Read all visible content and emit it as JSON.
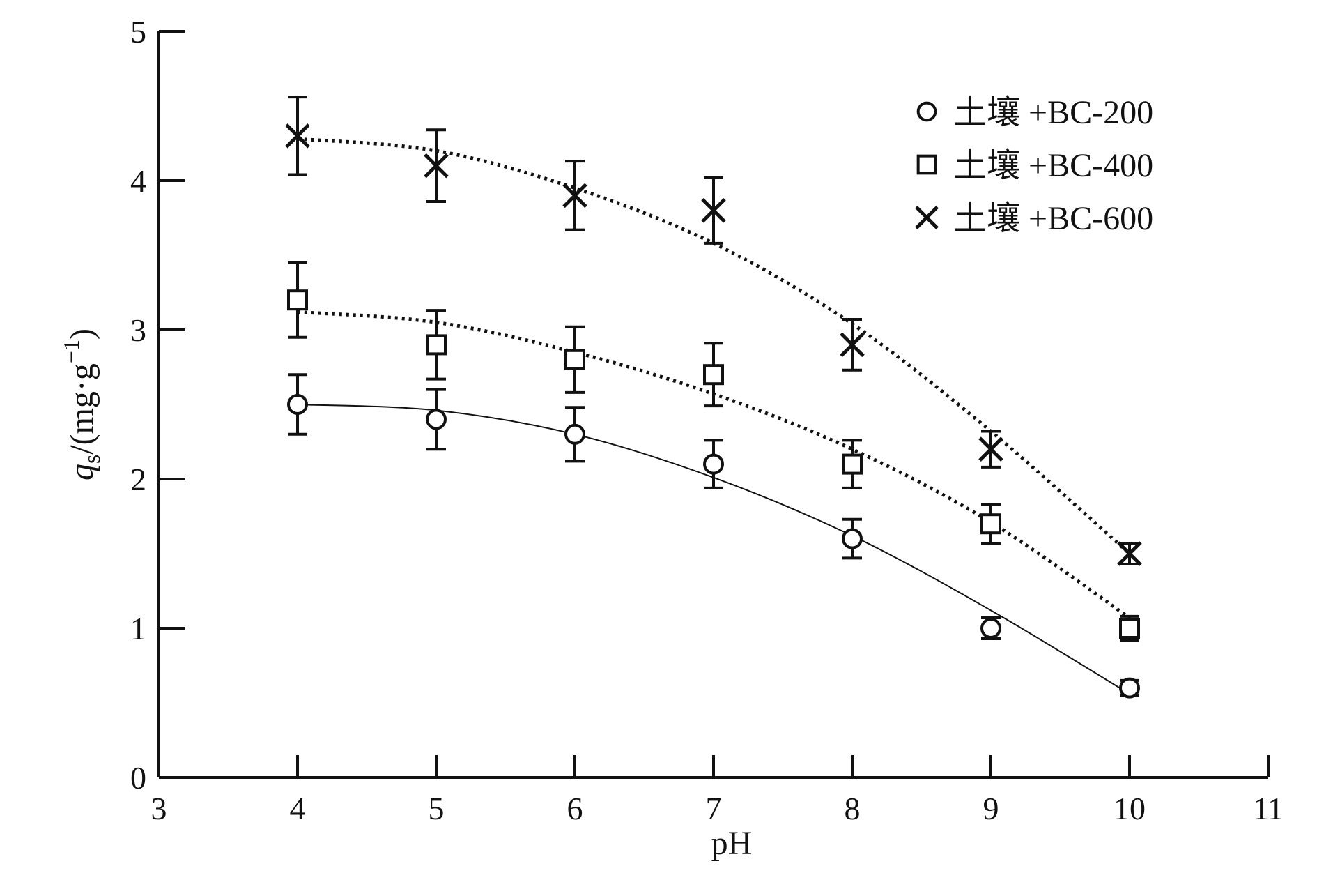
{
  "chart_data": {
    "type": "scatter",
    "title": "",
    "xlabel": "pH",
    "ylabel": {
      "symbol": "q",
      "subscript": "s",
      "prefix": "/(mg·g",
      "superscript": "−1",
      "suffix": ")"
    },
    "xlim": [
      3,
      11
    ],
    "ylim": [
      0,
      5
    ],
    "xticks": [
      3,
      4,
      5,
      6,
      7,
      8,
      9,
      10,
      11
    ],
    "yticks": [
      0,
      1,
      2,
      3,
      4,
      5
    ],
    "grid": false,
    "legend_position": "top-right",
    "series": [
      {
        "name": "土壤 +BC-200",
        "marker": "circle",
        "line_style": "solid",
        "x": [
          4,
          5,
          6,
          7,
          8,
          9,
          10
        ],
        "y": [
          2.5,
          2.4,
          2.3,
          2.1,
          1.6,
          1.0,
          0.6
        ],
        "error": [
          0.2,
          0.2,
          0.18,
          0.16,
          0.13,
          0.07,
          0.05
        ],
        "fit": [
          [
            4,
            2.5
          ],
          [
            5,
            2.46
          ],
          [
            6,
            2.3
          ],
          [
            7,
            2.01
          ],
          [
            8,
            1.62
          ],
          [
            9,
            1.12
          ],
          [
            10,
            0.56
          ]
        ]
      },
      {
        "name": "土壤 +BC-400",
        "marker": "square",
        "line_style": "dotted",
        "x": [
          4,
          5,
          6,
          7,
          8,
          9,
          10
        ],
        "y": [
          3.2,
          2.9,
          2.8,
          2.7,
          2.1,
          1.7,
          1.0
        ],
        "error": [
          0.25,
          0.23,
          0.22,
          0.21,
          0.16,
          0.13,
          0.08
        ],
        "fit": [
          [
            4,
            3.12
          ],
          [
            5,
            3.05
          ],
          [
            6,
            2.85
          ],
          [
            7,
            2.57
          ],
          [
            8,
            2.2
          ],
          [
            9,
            1.71
          ],
          [
            10,
            1.07
          ]
        ]
      },
      {
        "name": "土壤 +BC-600",
        "marker": "cross",
        "line_style": "dotted",
        "x": [
          4,
          5,
          6,
          7,
          8,
          9,
          10
        ],
        "y": [
          4.3,
          4.1,
          3.9,
          3.8,
          2.9,
          2.2,
          1.5
        ],
        "error": [
          0.26,
          0.24,
          0.23,
          0.22,
          0.17,
          0.12,
          0.07
        ],
        "fit": [
          [
            4,
            4.28
          ],
          [
            5,
            4.2
          ],
          [
            6,
            3.95
          ],
          [
            7,
            3.58
          ],
          [
            8,
            3.04
          ],
          [
            9,
            2.32
          ],
          [
            10,
            1.5
          ]
        ]
      }
    ]
  }
}
